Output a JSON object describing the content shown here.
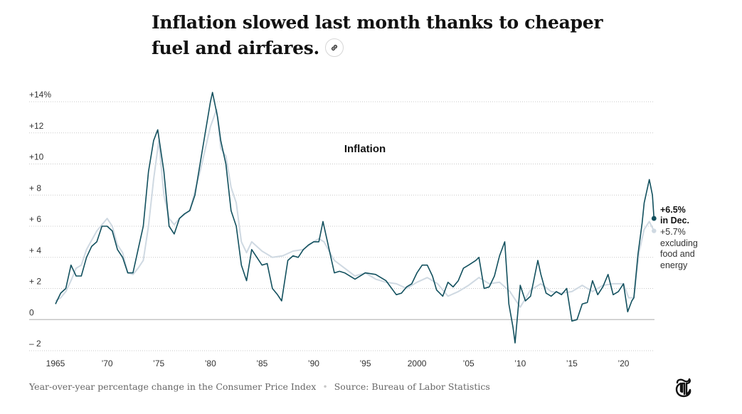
{
  "headline": "Inflation slowed last month thanks to cheaper fuel and airfares.",
  "link_icon": "link-icon",
  "logo_icon": "nyt-t-logo-icon",
  "footer": {
    "description": "Year-over-year percentage change in the Consumer Price Index",
    "separator": "•",
    "source": "Source: Bureau of Labor Statistics"
  },
  "colors": {
    "headline_series": "#12505e",
    "core_series": "#cfd9e2",
    "grid": "#c8c8c8",
    "zero_line": "#bdbdbd",
    "text": "#121212",
    "muted": "#666666"
  },
  "chart_data": {
    "type": "line",
    "title": "Inflation",
    "ylim": [
      -2,
      14
    ],
    "xlim": [
      1965,
      2023
    ],
    "y_ticks": [
      {
        "value": 14,
        "label": "+14%"
      },
      {
        "value": 12,
        "label": "+12"
      },
      {
        "value": 10,
        "label": "+10"
      },
      {
        "value": 8,
        "label": "+ 8"
      },
      {
        "value": 6,
        "label": "+ 6"
      },
      {
        "value": 4,
        "label": "+ 4"
      },
      {
        "value": 2,
        "label": "+ 2"
      },
      {
        "value": 0,
        "label": "0"
      },
      {
        "value": -2,
        "label": "– 2"
      }
    ],
    "x_ticks": [
      {
        "value": 1965,
        "label": "1965"
      },
      {
        "value": 1970,
        "label": "’70"
      },
      {
        "value": 1975,
        "label": "’75"
      },
      {
        "value": 1980,
        "label": "’80"
      },
      {
        "value": 1985,
        "label": "’85"
      },
      {
        "value": 1990,
        "label": "’90"
      },
      {
        "value": 1995,
        "label": "’95"
      },
      {
        "value": 2000,
        "label": "2000"
      },
      {
        "value": 2005,
        "label": "’05"
      },
      {
        "value": 2010,
        "label": "’10"
      },
      {
        "value": 2015,
        "label": "’15"
      },
      {
        "value": 2020,
        "label": "’20"
      }
    ],
    "grid": true,
    "annotations": {
      "headline_value": "+6.5%",
      "headline_period": "in Dec.",
      "core_value": "+5.7%",
      "core_label_lines": [
        "excluding",
        "food and",
        "energy"
      ]
    },
    "series": [
      {
        "key": "all_items",
        "x": [
          1965.0,
          1965.5,
          1966.0,
          1966.5,
          1967.0,
          1967.5,
          1968.0,
          1968.5,
          1969.0,
          1969.5,
          1970.0,
          1970.5,
          1971.0,
          1971.5,
          1972.0,
          1972.5,
          1973.0,
          1973.5,
          1974.0,
          1974.5,
          1974.9,
          1975.5,
          1976.0,
          1976.5,
          1977.0,
          1977.5,
          1978.0,
          1978.5,
          1979.0,
          1979.5,
          1980.0,
          1980.2,
          1980.7,
          1981.0,
          1981.5,
          1982.0,
          1982.5,
          1983.0,
          1983.5,
          1984.0,
          1984.5,
          1985.0,
          1985.5,
          1986.0,
          1986.5,
          1986.9,
          1987.5,
          1988.0,
          1988.5,
          1989.0,
          1989.5,
          1990.0,
          1990.5,
          1990.9,
          1991.5,
          1992.0,
          1992.5,
          1993.0,
          1994.0,
          1995.0,
          1996.0,
          1997.0,
          1998.0,
          1998.5,
          1999.0,
          1999.5,
          2000.0,
          2000.5,
          2001.0,
          2001.5,
          2001.9,
          2002.5,
          2003.0,
          2003.5,
          2004.0,
          2004.5,
          2005.0,
          2005.7,
          2006.0,
          2006.5,
          2007.0,
          2007.5,
          2008.0,
          2008.5,
          2008.9,
          2009.3,
          2009.5,
          2010.0,
          2010.5,
          2011.0,
          2011.7,
          2012.0,
          2012.5,
          2013.0,
          2013.5,
          2014.0,
          2014.5,
          2015.0,
          2015.5,
          2016.0,
          2016.5,
          2017.0,
          2017.5,
          2018.0,
          2018.5,
          2019.0,
          2019.5,
          2020.0,
          2020.4,
          2020.8,
          2021.0,
          2021.4,
          2021.8,
          2022.0,
          2022.5,
          2022.8,
          2022.95
        ],
        "values": [
          1.0,
          1.7,
          2.0,
          3.5,
          2.8,
          2.8,
          4.0,
          4.7,
          5.0,
          6.0,
          6.0,
          5.7,
          4.5,
          4.0,
          3.0,
          3.0,
          4.5,
          6.0,
          9.5,
          11.5,
          12.2,
          9.5,
          6.0,
          5.5,
          6.5,
          6.8,
          7.0,
          8.0,
          10.0,
          12.0,
          14.0,
          14.6,
          13.0,
          11.5,
          10.0,
          7.0,
          6.0,
          3.5,
          2.5,
          4.5,
          4.0,
          3.5,
          3.6,
          2.0,
          1.6,
          1.2,
          3.8,
          4.1,
          4.0,
          4.5,
          4.8,
          5.0,
          5.0,
          6.3,
          4.5,
          3.0,
          3.1,
          3.0,
          2.6,
          3.0,
          2.9,
          2.5,
          1.6,
          1.7,
          2.1,
          2.3,
          3.0,
          3.5,
          3.5,
          2.8,
          1.9,
          1.5,
          2.4,
          2.1,
          2.5,
          3.3,
          3.5,
          3.8,
          4.0,
          2.0,
          2.1,
          2.8,
          4.1,
          5.0,
          1.0,
          -0.5,
          -1.5,
          2.2,
          1.2,
          1.5,
          3.8,
          2.9,
          1.7,
          1.5,
          1.8,
          1.6,
          2.0,
          -0.1,
          0.0,
          1.0,
          1.1,
          2.5,
          1.6,
          2.1,
          2.9,
          1.6,
          1.8,
          2.3,
          0.5,
          1.2,
          1.4,
          4.2,
          6.2,
          7.5,
          9.0,
          8.0,
          6.5
        ]
      },
      {
        "key": "core",
        "x": [
          1965.0,
          1965.5,
          1966.0,
          1966.5,
          1967.0,
          1967.5,
          1968.0,
          1969.0,
          1970.0,
          1970.5,
          1971.0,
          1971.5,
          1972.0,
          1972.5,
          1973.0,
          1973.5,
          1974.0,
          1974.5,
          1975.0,
          1975.5,
          1976.0,
          1976.5,
          1977.0,
          1978.0,
          1979.0,
          1980.0,
          1980.6,
          1981.0,
          1981.5,
          1982.0,
          1982.5,
          1983.0,
          1983.5,
          1984.0,
          1985.0,
          1986.0,
          1987.0,
          1988.0,
          1989.0,
          1990.0,
          1990.5,
          1991.0,
          1992.0,
          1993.0,
          1994.0,
          1995.0,
          1996.0,
          1997.0,
          1998.0,
          1999.0,
          2000.0,
          2001.0,
          2002.0,
          2003.0,
          2004.0,
          2005.0,
          2006.0,
          2007.0,
          2008.0,
          2009.0,
          2010.0,
          2011.0,
          2012.0,
          2013.0,
          2014.0,
          2015.0,
          2016.0,
          2017.0,
          2018.0,
          2019.0,
          2020.0,
          2020.5,
          2021.0,
          2021.5,
          2022.0,
          2022.5,
          2022.95
        ],
        "values": [
          1.2,
          1.4,
          1.8,
          2.5,
          3.3,
          3.5,
          4.5,
          5.7,
          6.5,
          6.0,
          4.8,
          4.3,
          3.0,
          2.9,
          3.3,
          3.8,
          6.0,
          9.0,
          11.5,
          8.0,
          6.5,
          6.1,
          6.5,
          7.0,
          9.5,
          12.4,
          13.5,
          11.0,
          10.5,
          8.5,
          7.5,
          5.0,
          4.3,
          5.0,
          4.4,
          4.0,
          4.1,
          4.4,
          4.5,
          5.0,
          5.2,
          5.0,
          3.8,
          3.3,
          2.8,
          3.0,
          2.6,
          2.4,
          2.3,
          2.0,
          2.4,
          2.7,
          2.3,
          1.5,
          1.8,
          2.2,
          2.7,
          2.3,
          2.4,
          1.8,
          0.8,
          1.9,
          2.3,
          1.8,
          1.7,
          1.8,
          2.2,
          1.8,
          2.2,
          2.3,
          2.3,
          1.4,
          1.4,
          4.3,
          5.8,
          6.3,
          5.7
        ]
      }
    ]
  }
}
